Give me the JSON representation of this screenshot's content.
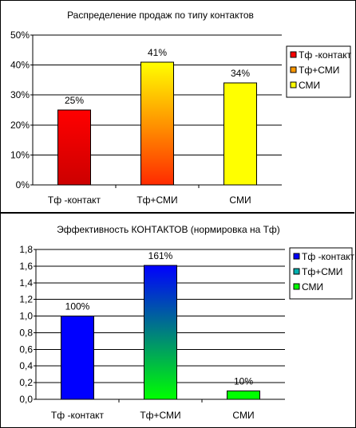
{
  "chart_data": [
    {
      "type": "bar",
      "title": "Распределение продаж по типу контактов",
      "categories": [
        "Тф -контакт",
        "Тф+СМИ",
        "СМИ"
      ],
      "values": [
        25,
        41,
        34
      ],
      "data_labels": [
        "25%",
        "41%",
        "34%"
      ],
      "yticks": [
        "0%",
        "10%",
        "20%",
        "30%",
        "40%",
        "50%"
      ],
      "ylim": [
        0,
        50
      ],
      "grid": true,
      "legend_position": "right",
      "legend": [
        "Тф -контакт",
        "Тф+СМИ",
        "СМИ"
      ],
      "colors": {
        "bar1_top": "#ff0000",
        "bar1_bottom": "#cc0000",
        "bar2_top": "#ffff00",
        "bar2_bottom": "#ff2a00",
        "bar3_top": "#ffff00",
        "bar3_bottom": "#ffff00",
        "legend": [
          "#ff0000",
          "#ff9900",
          "#ffff00"
        ]
      }
    },
    {
      "type": "bar",
      "title": "Эффективность КОНТАКТОВ (нормировка на Тф)",
      "categories": [
        "Тф -контакт",
        "Тф+СМИ",
        "СМИ"
      ],
      "values": [
        1.0,
        1.61,
        0.1
      ],
      "data_labels": [
        "100%",
        "161%",
        "10%"
      ],
      "yticks": [
        "0,0",
        "0,2",
        "0,4",
        "0,6",
        "0,8",
        "1,0",
        "1,2",
        "1,4",
        "1,6",
        "1,8"
      ],
      "ylim": [
        0,
        1.8
      ],
      "grid": true,
      "legend_position": "right",
      "legend": [
        "Тф -контакт",
        "Тф+СМИ",
        "СМИ"
      ],
      "colors": {
        "bar1_top": "#0000ff",
        "bar1_bottom": "#0000ff",
        "bar2_top": "#0000ff",
        "bar2_bottom": "#00ff00",
        "bar3_top": "#00ff00",
        "bar3_bottom": "#00ff00",
        "legend": [
          "#0000ff",
          "#00b0b0",
          "#00ff00"
        ]
      }
    }
  ]
}
